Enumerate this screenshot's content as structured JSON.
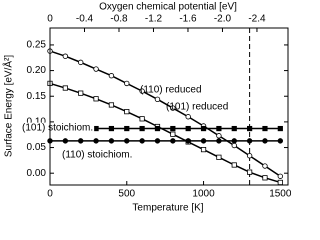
{
  "chart_data": {
    "type": "line",
    "xlabel": "Temperature [K]",
    "x2label": "Oxygen chemical potential  [eV]",
    "ylabel": "Surface Energy  [eV/Å²]",
    "x": [
      0,
      100,
      200,
      300,
      400,
      500,
      600,
      700,
      800,
      900,
      1000,
      1100,
      1200,
      1300,
      1400,
      1500
    ],
    "series": [
      {
        "name": "(110) reduced",
        "color": "#000000",
        "marker": "open-circle",
        "values": [
          0.238,
          0.228,
          0.216,
          0.203,
          0.19,
          0.175,
          0.16,
          0.144,
          0.127,
          0.11,
          0.092,
          0.073,
          0.054,
          0.034,
          0.014,
          -0.006
        ]
      },
      {
        "name": "(101) reduced",
        "color": "#000000",
        "marker": "open-square",
        "values": [
          0.175,
          0.166,
          0.156,
          0.145,
          0.133,
          0.12,
          0.106,
          0.091,
          0.076,
          0.061,
          0.046,
          0.031,
          0.016,
          0.002,
          -0.009,
          -0.018
        ]
      },
      {
        "name": "(101) stoichiom.",
        "color": "#000000",
        "marker": "filled-square",
        "values": [
          0.087,
          0.087,
          0.087,
          0.087,
          0.087,
          0.087,
          0.087,
          0.087,
          0.087,
          0.087,
          0.087,
          0.087,
          0.087,
          0.087,
          0.087,
          0.087
        ]
      },
      {
        "name": "(110) stoichiom.",
        "color": "#000000",
        "marker": "filled-circle",
        "values": [
          0.063,
          0.063,
          0.063,
          0.063,
          0.063,
          0.063,
          0.063,
          0.063,
          0.063,
          0.063,
          0.063,
          0.063,
          0.063,
          0.063,
          0.063,
          0.063
        ]
      }
    ],
    "xlim": [
      0,
      1550
    ],
    "xticks": [
      0,
      500,
      1000,
      1500
    ],
    "x2lim": [
      0,
      -2.76
    ],
    "x2ticks": [
      0,
      -0.4,
      -0.8,
      -1.2,
      -1.6,
      {
        "value": -2.0,
        "label": "-2.0"
      },
      -2.4
    ],
    "ylim": [
      -0.023,
      0.283
    ],
    "yticks": [
      {
        "value": 0,
        "label": "0.00"
      },
      0.05,
      {
        "value": 0.1,
        "label": "0.10"
      },
      0.15,
      {
        "value": 0.2,
        "label": "0.20"
      },
      0.25
    ],
    "dashed_vline_x": 1300
  }
}
